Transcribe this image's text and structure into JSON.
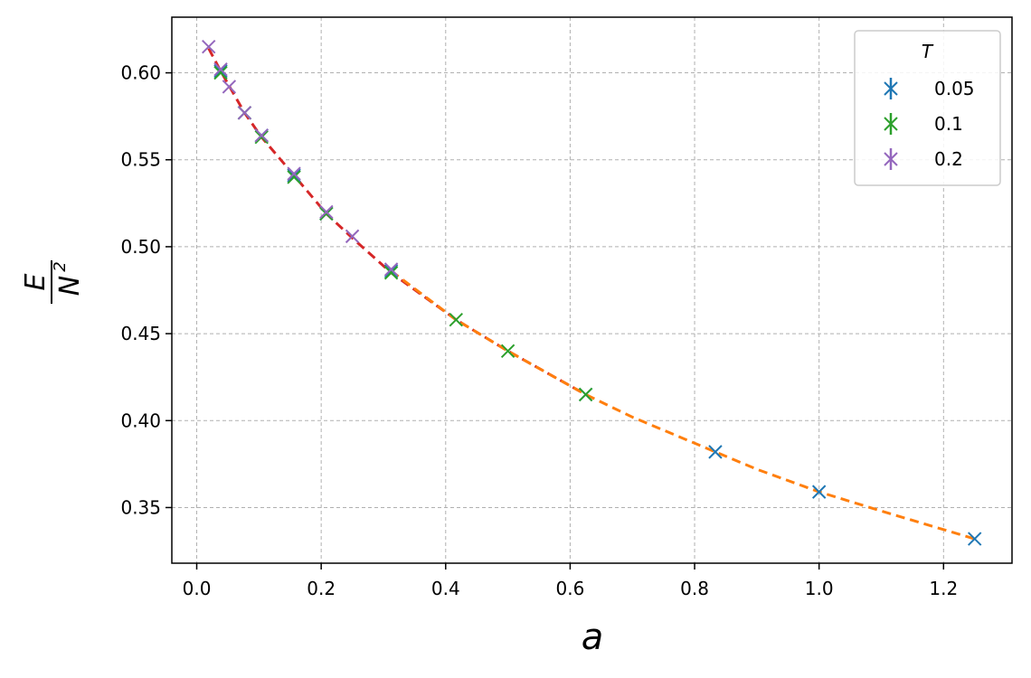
{
  "chart_data": {
    "type": "scatter",
    "xlabel": "a",
    "ylabel_num": "E",
    "ylabel_den": "N",
    "ylabel_den_sup": "2",
    "xlim": [
      -0.04,
      1.31
    ],
    "ylim": [
      0.318,
      0.632
    ],
    "x_ticks": [
      0.0,
      0.2,
      0.4,
      0.6,
      0.8,
      1.0,
      1.2
    ],
    "x_tick_labels": [
      "0.0",
      "0.2",
      "0.4",
      "0.6",
      "0.8",
      "1.0",
      "1.2"
    ],
    "y_ticks": [
      0.35,
      0.4,
      0.45,
      0.5,
      0.55,
      0.6
    ],
    "y_tick_labels": [
      "0.35",
      "0.40",
      "0.45",
      "0.50",
      "0.55",
      "0.60"
    ],
    "grid": true,
    "legend": {
      "title": "T",
      "position": "top-right"
    },
    "series": [
      {
        "name": "0.05",
        "color": "#1f77b4",
        "marker": "x",
        "x": [
          0.0385,
          0.0769,
          0.1042,
          0.1563,
          0.2083,
          0.3125,
          0.625,
          0.8333,
          1.0,
          1.25
        ],
        "y": [
          0.601,
          0.577,
          0.564,
          0.541,
          0.519,
          0.486,
          0.415,
          0.382,
          0.359,
          0.332
        ]
      },
      {
        "name": "0.1",
        "color": "#2ca02c",
        "marker": "x",
        "x": [
          0.0385,
          0.0769,
          0.1042,
          0.1563,
          0.2083,
          0.3125,
          0.4167,
          0.5,
          0.625
        ],
        "y": [
          0.6,
          0.577,
          0.563,
          0.54,
          0.519,
          0.485,
          0.458,
          0.44,
          0.415
        ]
      },
      {
        "name": "0.2",
        "color": "#9467bd",
        "marker": "x",
        "x": [
          0.0192,
          0.0385,
          0.0521,
          0.0769,
          0.1042,
          0.1563,
          0.2083,
          0.25,
          0.3125
        ],
        "y": [
          0.615,
          0.602,
          0.592,
          0.577,
          0.564,
          0.542,
          0.52,
          0.506,
          0.487
        ]
      }
    ],
    "fit_lines": [
      {
        "color": "#d62728",
        "style": "dashed",
        "x": [
          0.0192,
          0.0385,
          0.0769,
          0.1042,
          0.1563,
          0.2083,
          0.25,
          0.3125,
          0.4167,
          0.5,
          0.625
        ],
        "y": [
          0.614,
          0.601,
          0.577,
          0.563,
          0.541,
          0.519,
          0.505,
          0.485,
          0.458,
          0.44,
          0.415
        ]
      },
      {
        "color": "#ff7f0e",
        "style": "dashed",
        "x": [
          0.3125,
          0.4167,
          0.5,
          0.625,
          0.7,
          0.8333,
          0.9,
          1.0,
          1.1,
          1.25
        ],
        "y": [
          0.486,
          0.458,
          0.44,
          0.415,
          0.402,
          0.382,
          0.372,
          0.359,
          0.348,
          0.332
        ]
      }
    ]
  }
}
